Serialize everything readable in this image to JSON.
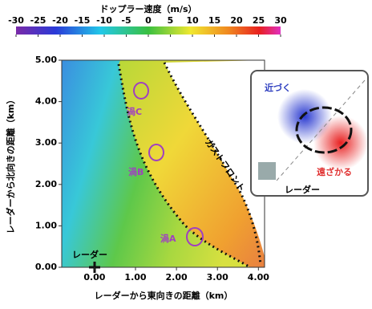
{
  "colorbar": {
    "title": "ドップラー速度（m/s）",
    "lim": [
      -30,
      30
    ],
    "ticks": [
      -30,
      -25,
      -20,
      -15,
      -10,
      -5,
      0,
      5,
      10,
      15,
      20,
      25,
      30
    ]
  },
  "x_axis": {
    "label": "レーダーから東向きの距離（km）",
    "lim": [
      -0.8,
      4.15
    ],
    "ticks": [
      {
        "value": 0,
        "label": "0.00"
      },
      {
        "value": 1,
        "label": "1.00"
      },
      {
        "value": 2,
        "label": "2.00"
      },
      {
        "value": 3,
        "label": "3.00"
      },
      {
        "value": 4,
        "label": "4.00"
      }
    ]
  },
  "y_axis": {
    "label": "レーダーから北向きの距離（km）",
    "lim": [
      0,
      5
    ],
    "ticks": [
      {
        "value": 0,
        "label": "0.00"
      },
      {
        "value": 1,
        "label": "1.00"
      },
      {
        "value": 2,
        "label": "2.00"
      },
      {
        "value": 3,
        "label": "3.00"
      },
      {
        "value": 4,
        "label": "4.00"
      },
      {
        "value": 5,
        "label": "5.00"
      }
    ]
  },
  "annotations": {
    "vortex_a": "渦A",
    "vortex_b": "渦B",
    "vortex_c": "渦C",
    "gust_front": "ガストフロント",
    "radar": "レーダー"
  },
  "inset": {
    "approaching": "近づく",
    "receding": "遠ざかる",
    "radar": "レーダー"
  }
}
